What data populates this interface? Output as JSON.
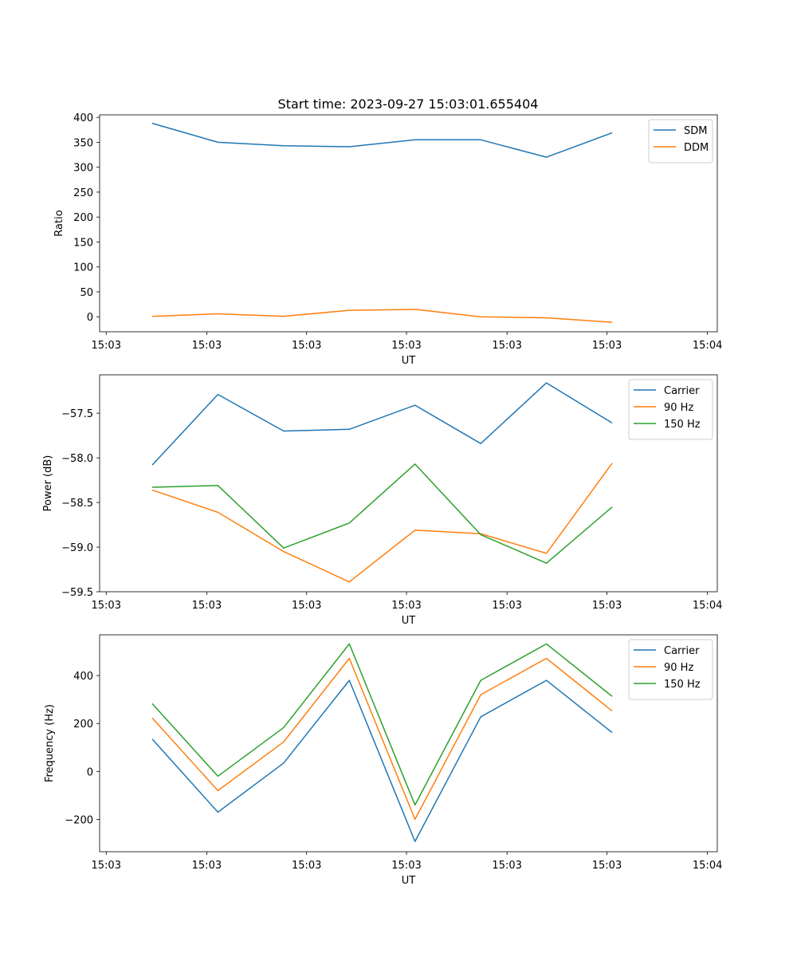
{
  "figure": {
    "title": "Start time: 2023-09-27 15:03:01.655404"
  },
  "colors": {
    "blue": "#1f77b4",
    "orange": "#ff7f0e",
    "green": "#2ca02c"
  },
  "chart_data": [
    {
      "type": "line",
      "title": "Start time: 2023-09-27 15:03:01.655404",
      "xlabel": "UT",
      "ylabel": "Ratio",
      "x": [
        1,
        2,
        3,
        4,
        5,
        6,
        7,
        8
      ],
      "xlim": [
        0.2,
        9.6
      ],
      "xticks": [
        0.3,
        1.83,
        3.35,
        4.87,
        6.4,
        7.92,
        9.45
      ],
      "xtick_labels": [
        "15:03",
        "15:03",
        "15:03",
        "15:03",
        "15:03",
        "15:03",
        "15:04"
      ],
      "ylim": [
        -30,
        405
      ],
      "yticks": [
        0,
        50,
        100,
        150,
        200,
        250,
        300,
        350,
        400
      ],
      "ytick_labels": [
        "0",
        "50",
        "100",
        "150",
        "200",
        "250",
        "300",
        "350",
        "400"
      ],
      "legend": "upper right",
      "series": [
        {
          "name": "SDM",
          "color": "#1f77b4",
          "values": [
            388,
            350,
            343,
            341,
            355,
            355,
            320,
            369
          ]
        },
        {
          "name": "DDM",
          "color": "#ff7f0e",
          "values": [
            1,
            6,
            1,
            13,
            15,
            0,
            -2,
            -11
          ]
        }
      ]
    },
    {
      "type": "line",
      "xlabel": "UT",
      "ylabel": "Power (dB)",
      "x": [
        1,
        2,
        3,
        4,
        5,
        6,
        7,
        8
      ],
      "xlim": [
        0.2,
        9.6
      ],
      "xticks": [
        0.3,
        1.83,
        3.35,
        4.87,
        6.4,
        7.92,
        9.45
      ],
      "xtick_labels": [
        "15:03",
        "15:03",
        "15:03",
        "15:03",
        "15:03",
        "15:03",
        "15:04"
      ],
      "ylim": [
        -59.5,
        -57.07
      ],
      "yticks": [
        -59.5,
        -59.0,
        -58.5,
        -58.0,
        -57.5
      ],
      "ytick_labels": [
        "−59.5",
        "−59.0",
        "−58.5",
        "−58.0",
        "−57.5"
      ],
      "legend": "upper right",
      "series": [
        {
          "name": "Carrier",
          "color": "#1f77b4",
          "values": [
            -58.08,
            -57.29,
            -57.7,
            -57.68,
            -57.41,
            -57.84,
            -57.16,
            -57.61
          ]
        },
        {
          "name": "90 Hz",
          "color": "#ff7f0e",
          "values": [
            -58.36,
            -58.61,
            -59.05,
            -59.39,
            -58.81,
            -58.85,
            -59.07,
            -58.06
          ]
        },
        {
          "name": "150 Hz",
          "color": "#2ca02c",
          "values": [
            -58.33,
            -58.31,
            -59.01,
            -58.73,
            -58.07,
            -58.86,
            -59.18,
            -58.55
          ]
        }
      ]
    },
    {
      "type": "line",
      "xlabel": "UT",
      "ylabel": "Frequency (Hz)",
      "x": [
        1,
        2,
        3,
        4,
        5,
        6,
        7,
        8
      ],
      "xlim": [
        0.2,
        9.6
      ],
      "xticks": [
        0.3,
        1.83,
        3.35,
        4.87,
        6.4,
        7.92,
        9.45
      ],
      "xtick_labels": [
        "15:03",
        "15:03",
        "15:03",
        "15:03",
        "15:03",
        "15:03",
        "15:04"
      ],
      "ylim": [
        -335,
        570
      ],
      "yticks": [
        -200,
        0,
        200,
        400
      ],
      "ytick_labels": [
        "−200",
        "0",
        "200",
        "400"
      ],
      "legend": "upper right",
      "series": [
        {
          "name": "Carrier",
          "color": "#1f77b4",
          "values": [
            135,
            -170,
            35,
            380,
            -292,
            228,
            380,
            162
          ]
        },
        {
          "name": "90 Hz",
          "color": "#ff7f0e",
          "values": [
            223,
            -80,
            123,
            472,
            -200,
            320,
            472,
            252
          ]
        },
        {
          "name": "150 Hz",
          "color": "#2ca02c",
          "values": [
            283,
            -20,
            183,
            532,
            -140,
            380,
            532,
            313
          ]
        }
      ]
    }
  ]
}
